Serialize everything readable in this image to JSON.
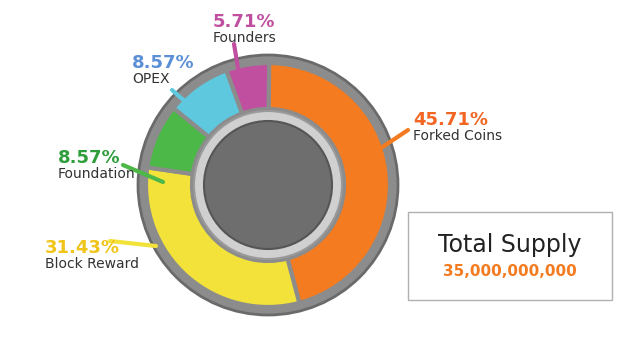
{
  "chart_data": {
    "type": "pie",
    "categories": [
      "Founders",
      "Forked Coins",
      "Block Reward",
      "Foundation",
      "OPEX"
    ],
    "values": [
      5.71,
      45.71,
      31.43,
      8.57,
      8.57
    ],
    "value_labels": [
      "5.71%",
      "45.71%",
      "31.43%",
      "8.57%",
      "8.57%"
    ],
    "colors": [
      "#c0509f",
      "#f47b20",
      "#f2e23a",
      "#4cb848",
      "#5ec8df"
    ],
    "data_labels": true,
    "annotations": [
      "Total Supply",
      "35,000,000,000"
    ]
  }
}
